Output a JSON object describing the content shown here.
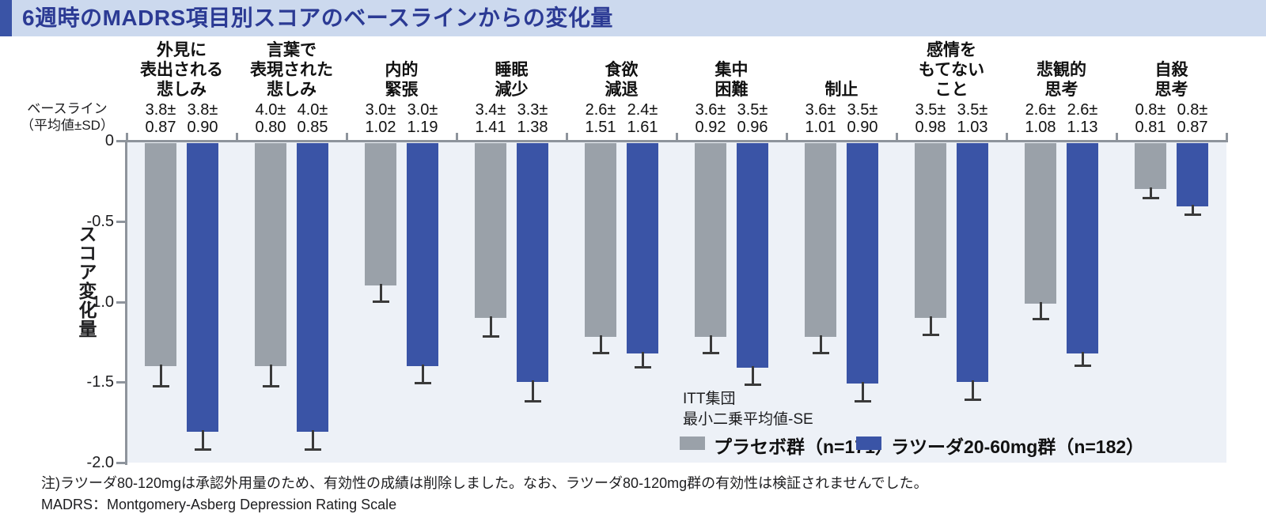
{
  "header": {
    "title": "6週時のMADRS項目別スコアのベースラインからの変化量",
    "accent_color": "#3a54a6",
    "band_color": "#ccd9ee",
    "title_color": "#2b3a94"
  },
  "axis": {
    "baseline_header_line1": "ベースライン",
    "baseline_header_line2": "（平均値±SD）",
    "y_tick_labels": [
      "0",
      "-0.5",
      "-1.0",
      "-1.5",
      "-2.0"
    ]
  },
  "legend": {
    "note_line1": "ITT集団",
    "note_line2": "最小二乗平均値-SE",
    "placebo_label": "プラセボ群（n=171）",
    "lurasidone_label": "ラツーダ20-60mg群（n=182）"
  },
  "footnotes": [
    "注)ラツーダ80-120mgは承認外用量のため、有効性の成績は削除しました。なお、ラツーダ80-120mg群の有効性は検証されませんでした。",
    "MADRS：Montgomery-Asberg Depression Rating Scale"
  ],
  "chart_data": {
    "type": "bar",
    "title": "6週時のMADRS項目別スコアのベースラインからの変化量",
    "ylabel": "スコア変化量",
    "ylim": [
      -2.0,
      0
    ],
    "y_ticks": [
      0,
      -0.5,
      -1.0,
      -1.5,
      -2.0
    ],
    "grid": false,
    "legend_position": "bottom-right",
    "error_bar": "SE, downward, capped",
    "categories": [
      {
        "name_lines": [
          "外見に",
          "表出される",
          "悲しみ"
        ],
        "baseline_mean_sd": [
          "3.8±0.87",
          "3.8±0.90"
        ]
      },
      {
        "name_lines": [
          "言葉で",
          "表現された",
          "悲しみ"
        ],
        "baseline_mean_sd": [
          "4.0±0.80",
          "4.0±0.85"
        ]
      },
      {
        "name_lines": [
          "内的",
          "緊張"
        ],
        "baseline_mean_sd": [
          "3.0±1.02",
          "3.0±1.19"
        ]
      },
      {
        "name_lines": [
          "睡眠",
          "減少"
        ],
        "baseline_mean_sd": [
          "3.4±1.41",
          "3.3±1.38"
        ]
      },
      {
        "name_lines": [
          "食欲",
          "減退"
        ],
        "baseline_mean_sd": [
          "2.6±1.51",
          "2.4±1.61"
        ]
      },
      {
        "name_lines": [
          "集中",
          "困難"
        ],
        "baseline_mean_sd": [
          "3.6±0.92",
          "3.5±0.96"
        ]
      },
      {
        "name_lines": [
          "制止"
        ],
        "baseline_mean_sd": [
          "3.6±1.01",
          "3.5±0.90"
        ]
      },
      {
        "name_lines": [
          "感情を",
          "もてない",
          "こと"
        ],
        "baseline_mean_sd": [
          "3.5±0.98",
          "3.5±1.03"
        ]
      },
      {
        "name_lines": [
          "悲観的",
          "思考"
        ],
        "baseline_mean_sd": [
          "2.6±1.08",
          "2.6±1.13"
        ]
      },
      {
        "name_lines": [
          "自殺",
          "思考"
        ],
        "baseline_mean_sd": [
          "0.8±0.81",
          "0.8±0.87"
        ]
      }
    ],
    "series": [
      {
        "name": "プラセボ群（n=171）",
        "color": "#9aa1a9",
        "values": [
          -1.4,
          -1.4,
          -0.9,
          -1.1,
          -1.22,
          -1.22,
          -1.22,
          -1.1,
          -1.01,
          -0.3
        ],
        "se": [
          0.13,
          0.13,
          0.1,
          0.12,
          0.1,
          0.1,
          0.1,
          0.11,
          0.1,
          0.06
        ]
      },
      {
        "name": "ラツーダ20-60mg群（n=182）",
        "color": "#3a54a6",
        "values": [
          -1.81,
          -1.81,
          -1.4,
          -1.5,
          -1.32,
          -1.41,
          -1.51,
          -1.5,
          -1.32,
          -0.41
        ],
        "se": [
          0.11,
          0.11,
          0.11,
          0.12,
          0.09,
          0.11,
          0.11,
          0.11,
          0.08,
          0.05
        ]
      }
    ]
  },
  "colors": {
    "plot_background": "#edf1f7",
    "axis": "#8e949c",
    "error_bar": "#3a3a3a",
    "placebo_bar": "#9aa1a9",
    "lurasidone_bar": "#3a54a6"
  }
}
